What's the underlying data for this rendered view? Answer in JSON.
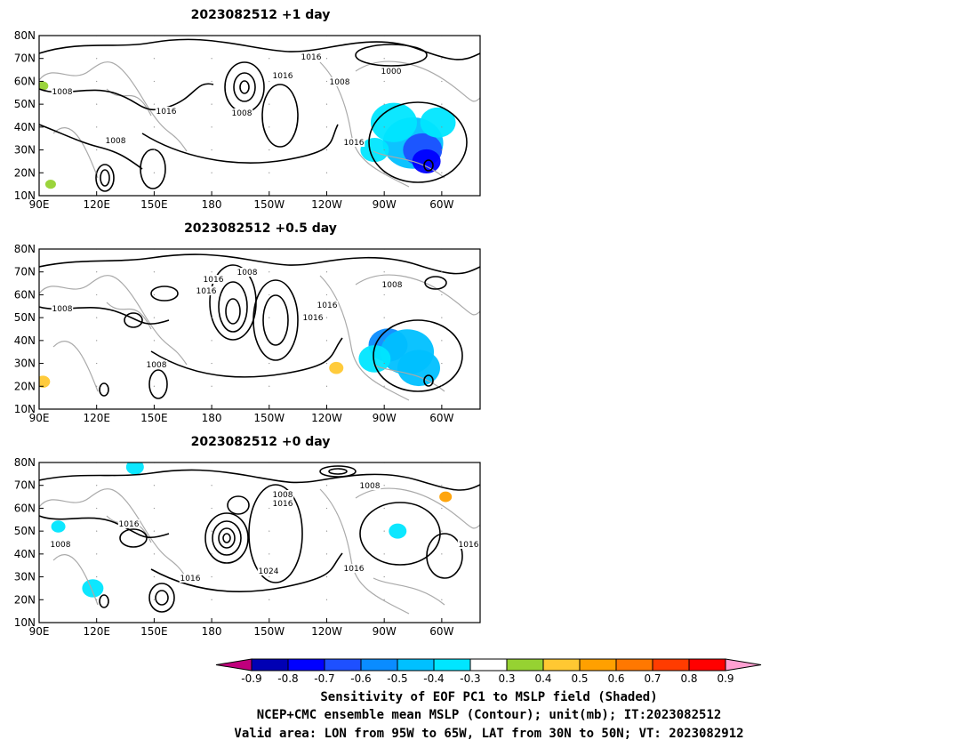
{
  "chart_data": {
    "type": "heatmap",
    "panels": [
      {
        "title": "2023082512  +1 day",
        "contour_labels": [
          "1016",
          "1016",
          "1000",
          "1008",
          "1008",
          "1008",
          "1016",
          "1008",
          "1016"
        ],
        "shading": [
          {
            "lon": -75,
            "lat": 33,
            "value": -0.5
          },
          {
            "lon": -70,
            "lat": 30,
            "value": -0.7
          },
          {
            "lon": -68,
            "lat": 25,
            "value": -0.8
          },
          {
            "lon": -85,
            "lat": 42,
            "value": -0.4
          },
          {
            "lon": -62,
            "lat": 42,
            "value": -0.4
          },
          {
            "lon": -95,
            "lat": 30,
            "value": -0.35
          },
          {
            "lon": 96,
            "lat": 15,
            "value": 0.35
          },
          {
            "lon": 92,
            "lat": 58,
            "value": 0.35
          }
        ]
      },
      {
        "title": "2023082512  +0.5 day",
        "contour_labels": [
          "1008",
          "1016",
          "1016",
          "1008",
          "1016",
          "1016",
          "1008",
          "1008"
        ],
        "shading": [
          {
            "lon": -88,
            "lat": 38,
            "value": -0.6
          },
          {
            "lon": -78,
            "lat": 35,
            "value": -0.5
          },
          {
            "lon": -72,
            "lat": 28,
            "value": -0.45
          },
          {
            "lon": -95,
            "lat": 32,
            "value": -0.35
          },
          {
            "lon": -115,
            "lat": 28,
            "value": 0.45
          },
          {
            "lon": 92,
            "lat": 22,
            "value": 0.4
          }
        ]
      },
      {
        "title": "2023082512  +0 day",
        "contour_labels": [
          "1008",
          "1016",
          "1008",
          "1016",
          "1016",
          "1024",
          "1016",
          "1016",
          "1008"
        ],
        "shading": [
          {
            "lon": 118,
            "lat": 25,
            "value": -0.4
          },
          {
            "lon": 100,
            "lat": 52,
            "value": -0.35
          },
          {
            "lon": -83,
            "lat": 50,
            "value": -0.35
          },
          {
            "lon": -58,
            "lat": 65,
            "value": 0.5
          },
          {
            "lon": 140,
            "lat": 78,
            "value": -0.35
          }
        ]
      }
    ],
    "x_ticks": [
      "90E",
      "120E",
      "150E",
      "180",
      "150W",
      "120W",
      "90W",
      "60W"
    ],
    "y_ticks": [
      "80N",
      "70N",
      "60N",
      "50N",
      "40N",
      "30N",
      "20N",
      "10N"
    ],
    "lon_range": [
      90,
      320
    ],
    "lat_range": [
      10,
      80
    ],
    "colorbar": {
      "levels": [
        "-0.9",
        "-0.8",
        "-0.7",
        "-0.6",
        "-0.5",
        "-0.4",
        "-0.3",
        "0.3",
        "0.4",
        "0.5",
        "0.6",
        "0.7",
        "0.8",
        "0.9"
      ],
      "colors": [
        "#c0007c",
        "#0000b4",
        "#0000ff",
        "#1e50ff",
        "#0a8cff",
        "#00c0ff",
        "#00e6ff",
        "#ffffff",
        "#96d232",
        "#ffc832",
        "#ffa000",
        "#ff7800",
        "#ff3c00",
        "#ff0000",
        "#ffa0d2"
      ]
    },
    "footer": [
      "Sensitivity of EOF PC1 to MSLP field (Shaded)",
      "NCEP+CMC ensemble mean MSLP (Contour); unit(mb); IT:2023082512",
      "Valid area: LON from 95W to 65W, LAT from 30N to 50N; VT: 2023082912"
    ]
  }
}
